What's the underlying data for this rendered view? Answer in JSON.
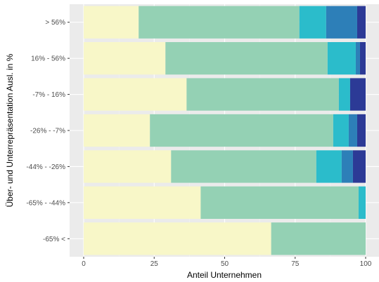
{
  "chart_data": {
    "type": "bar",
    "orientation": "horizontal",
    "stacked": true,
    "xlabel": "Anteil Unternehmen",
    "ylabel": "Über- und Unterrepräsentation Ausl. in %",
    "xlim": [
      0,
      100
    ],
    "x_ticks": [
      "0",
      "25",
      "50",
      "75",
      "100"
    ],
    "x_tick_values": [
      0,
      25,
      50,
      75,
      100
    ],
    "grid": true,
    "legend": "none",
    "categories": [
      ">  56%",
      "16% - 56%",
      "-7% - 16%",
      "-26% - -7%",
      "-44% - -26%",
      "-65% - -44%",
      "-65% <"
    ],
    "series": [
      {
        "color": "#f8f7c8",
        "values": [
          19.5,
          29,
          36.5,
          23.5,
          31,
          41.5,
          66.5
        ]
      },
      {
        "color": "#94d1b4",
        "values": [
          57,
          57.5,
          54,
          65,
          51.5,
          56,
          33.5
        ]
      },
      {
        "color": "#2bbccb",
        "values": [
          9.5,
          10,
          4,
          5.5,
          9,
          2.5,
          0
        ]
      },
      {
        "color": "#2d7fb8",
        "values": [
          11,
          1.5,
          0,
          3,
          4,
          0,
          0
        ]
      },
      {
        "color": "#2c3a96",
        "values": [
          3,
          2,
          5.5,
          3,
          4.5,
          0,
          0
        ]
      }
    ]
  },
  "colors": {
    "panel_background": "#ebebeb",
    "grid_major": "#ffffff",
    "grid_minor": "#f2f2f2",
    "tick_text": "#4d4d4d"
  }
}
